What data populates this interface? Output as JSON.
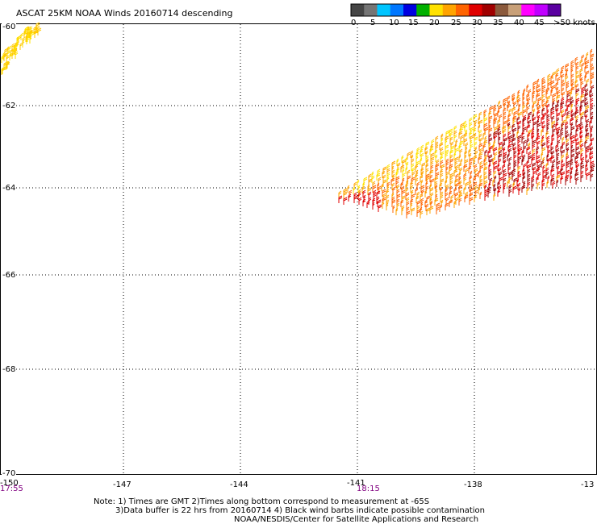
{
  "title": "ASCAT 25KM NOAA Winds 20160714 descending",
  "legend": {
    "colors": [
      "#454545",
      "#757575",
      "#00c5ff",
      "#0077ff",
      "#0000e0",
      "#00b000",
      "#ffe100",
      "#ffa400",
      "#ff6400",
      "#e00000",
      "#a00000",
      "#8b5a3c",
      "#c8a078",
      "#ff00ff",
      "#c000ff",
      "#5a00a0"
    ],
    "labels": [
      "0",
      "5",
      "10",
      "15",
      "20",
      "25",
      "30",
      "35",
      "40",
      "45",
      ">50 knots"
    ]
  },
  "axes": {
    "lat_labels": [
      "-60",
      "-62",
      "-64",
      "-66",
      "-68",
      "-70"
    ],
    "lon_labels": [
      "-150",
      "-147",
      "-144",
      "-141",
      "-138",
      "-13"
    ],
    "time_labels": [
      "17:55",
      "18:15"
    ]
  },
  "notes": {
    "line1": "Note: 1) Times are GMT 2)Times along bottom correspond to measurement at -65S",
    "line2": "3)Data buffer is 22 hrs from 20160714 4) Black wind barbs indicate possible contamination",
    "line3": "NOAA/NESDIS/Center for Satellite Applications and Research"
  },
  "swaths": [
    {
      "name": "west-swath",
      "speed_knots_range": [
        20,
        25
      ],
      "colors": [
        "#ffe100",
        "#ffc800"
      ]
    },
    {
      "name": "east-swath",
      "speed_knots_range": [
        25,
        40
      ],
      "colors": [
        "#ffe100",
        "#ffa400",
        "#ff6400",
        "#e00000",
        "#a00000"
      ]
    }
  ]
}
